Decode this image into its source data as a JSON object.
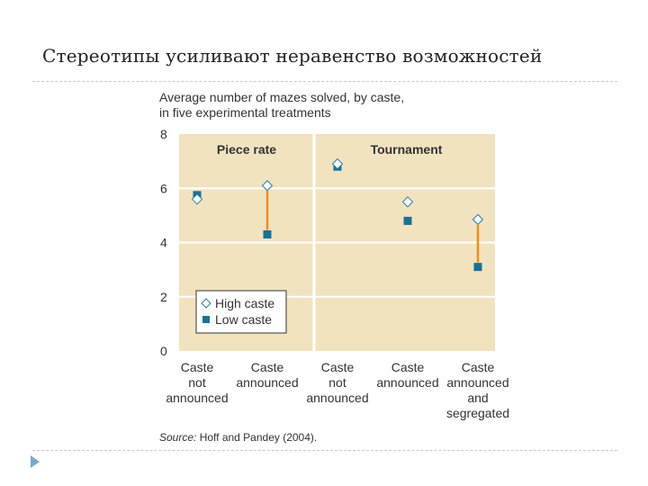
{
  "slide": {
    "title": "Стереотипы усиливают неравенство возможностей"
  },
  "chart_data": {
    "type": "scatter",
    "title": "Average number of mazes solved, by caste,",
    "subtitle": "in five experimental treatments",
    "ylim": [
      0,
      8
    ],
    "yticks": [
      "0",
      "2",
      "4",
      "6",
      "8"
    ],
    "grid": true,
    "categories": [
      [
        "Caste",
        "not",
        "announced"
      ],
      [
        "Caste",
        "announced"
      ],
      [
        "Caste",
        "not",
        "announced"
      ],
      [
        "Caste",
        "announced"
      ],
      [
        "Caste",
        "announced",
        "and",
        "segregated"
      ]
    ],
    "panels": [
      "Piece rate",
      "Tournament"
    ],
    "panel_split_after": 2,
    "series": [
      {
        "name": "High caste",
        "marker": "diamond",
        "values": [
          5.6,
          6.1,
          6.9,
          5.5,
          4.85
        ]
      },
      {
        "name": "Low caste",
        "marker": "square",
        "values": [
          5.75,
          4.3,
          6.8,
          4.8,
          3.1
        ]
      }
    ],
    "gap_lines": [
      1,
      4
    ],
    "legend": {
      "position": "bottom-left",
      "entries": [
        "High caste",
        "Low caste"
      ]
    },
    "source_label": "Source:",
    "source_text": " Hoff and Pandey (2004).",
    "colors": {
      "background": "#f1e3bf",
      "grid": "#ffffff",
      "high_caste": "#ffffff",
      "high_caste_edge": "#2a7aa0",
      "low_caste": "#1a7194",
      "gap_line": "#e8901e",
      "text": "#333333"
    }
  }
}
